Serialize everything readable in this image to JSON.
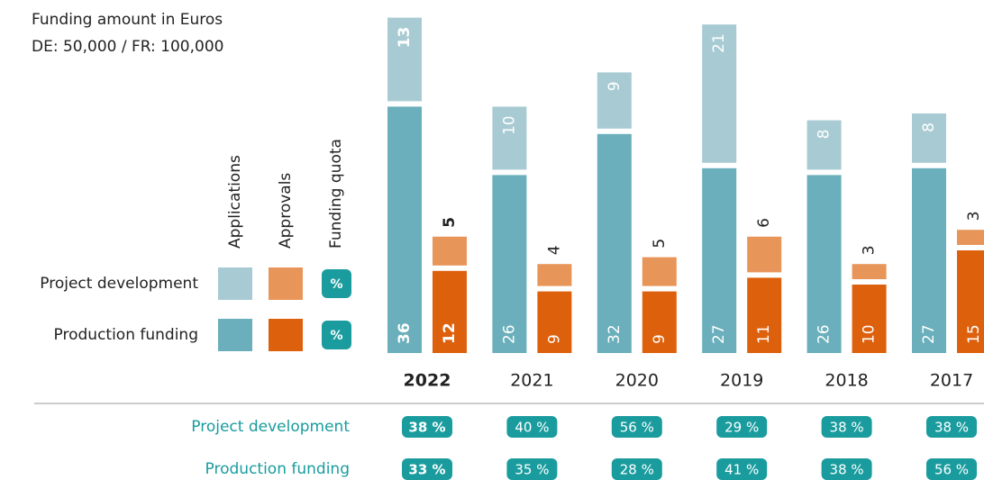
{
  "chart_data": {
    "type": "bar",
    "title": "Funding amount in Euros",
    "subtitle": "DE: 50,000 / FR: 100,000",
    "categories": [
      "2022",
      "2021",
      "2020",
      "2019",
      "2018",
      "2017"
    ],
    "highlight": "2022",
    "ylim": [
      0,
      50
    ],
    "legend": {
      "columns": [
        "Applications",
        "Approvals",
        "Funding quota"
      ],
      "rows": [
        "Project development",
        "Production funding"
      ],
      "quota_symbol": "%"
    },
    "series": [
      {
        "name": "Production funding",
        "stack": "Applications",
        "color": "#6aafbb",
        "values": [
          36,
          26,
          32,
          27,
          26,
          27
        ]
      },
      {
        "name": "Project development",
        "stack": "Applications",
        "color": "#a8cbd3",
        "values": [
          13,
          10,
          9,
          21,
          8,
          8
        ]
      },
      {
        "name": "Production funding",
        "stack": "Approvals",
        "color": "#dd600c",
        "values": [
          12,
          9,
          9,
          11,
          10,
          15
        ]
      },
      {
        "name": "Project development",
        "stack": "Approvals",
        "color": "#e8955a",
        "values": [
          5,
          4,
          5,
          6,
          3,
          3
        ]
      }
    ],
    "quota_color": "#1a9c9e",
    "quotas": [
      {
        "name": "Project development",
        "values": [
          38,
          40,
          56,
          29,
          38,
          38
        ],
        "value_labels": [
          "38 %",
          "40 %",
          "56 %",
          "29 %",
          "38 %",
          "38 %"
        ]
      },
      {
        "name": "Production funding",
        "values": [
          33,
          35,
          28,
          41,
          38,
          56
        ],
        "value_labels": [
          "33 %",
          "35 %",
          "28 %",
          "41 %",
          "38 %",
          "56 %"
        ]
      }
    ]
  }
}
